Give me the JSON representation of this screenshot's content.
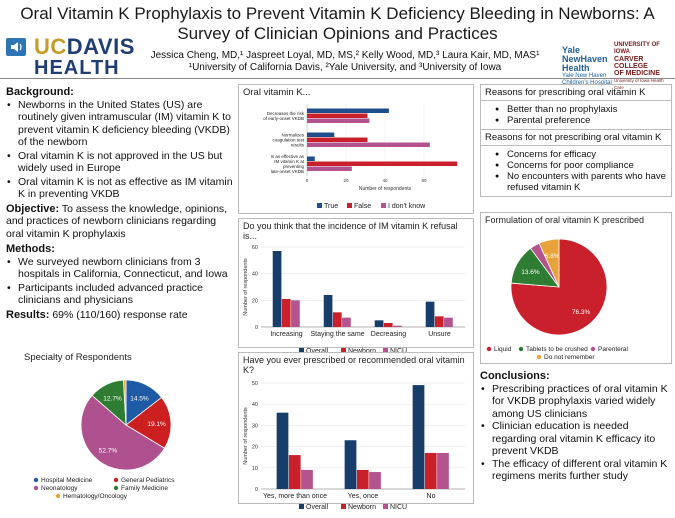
{
  "header": {
    "title": "Oral Vitamin K Prophylaxis to Prevent Vitamin K Deficiency Bleeding in Newborns: A Survey of Clinician Opinions and Practices",
    "authors_line1": "Jessica Cheng, MD,¹ Jaspreet Loyal, MD, MS,² Kelly Wood, MD,³ Laura Kair, MD, MAS¹",
    "authors_line2": "¹University of California Davis, ²Yale University, and ³University of Iowa",
    "logo_uc": "UC",
    "logo_davis": "DAVIS",
    "logo_health": "HEALTH",
    "yale_logo": [
      "Yale",
      "NewHaven",
      "Health"
    ],
    "yale_sub": [
      "Yale New Haven",
      "Children's Hospital"
    ],
    "iowa_logo": [
      "UNIVERSITY OF IOWA",
      "CARVER COLLEGE",
      "OF MEDICINE",
      "University of Iowa Health Care"
    ]
  },
  "left": {
    "background_h": "Background:",
    "background": [
      "Newborns in the United States (US) are routinely given intramuscular (IM) vitamin K to prevent vitamin K deficiency bleeding (VKDB) of the newborn",
      "Oral vitamin K is not approved in the US but widely used in Europe",
      "Oral vitamin K is not as effective as IM vitamin K in preventing VKDB"
    ],
    "objective_h": "Objective:",
    "objective": " To assess the knowledge, opinions, and practices of newborn clinicians regarding oral vitamin K prophylaxis",
    "methods_h": "Methods:",
    "methods": [
      "We surveyed newborn clinicians from 3 hospitals in California, Connecticut, and Iowa",
      "Participants included advanced practice clinicians and physicians"
    ],
    "results_h": "Results:",
    "results": " 69% (110/160) response rate"
  },
  "reasons": {
    "for_h": "Reasons for prescribing oral vitamin K",
    "for": [
      "Better than no prophylaxis",
      "Parental preference"
    ],
    "against_h": "Reasons for not prescribing oral vitamin K",
    "against": [
      "Concerns for efficacy",
      "Concerns for poor compliance",
      "No encounters with parents who have refused vitamin K"
    ]
  },
  "conclusions": {
    "h": "Conclusions:",
    "items": [
      "Prescribing practices of oral vitamin K for VKDB prophylaxis varied widely among US clinicians",
      "Clinician education is needed regarding oral vitamin K efficacy ito prevent VKDB",
      "The efficacy of different oral vitamin K regimens merits further study"
    ]
  },
  "chart_data": [
    {
      "id": "specialty",
      "type": "pie",
      "title": "Specialty of Respondents",
      "categories": [
        "Hospital Medicine",
        "General Pediatrics",
        "Neonatology",
        "Family Medicine",
        "Hematology/Oncology"
      ],
      "values": [
        14.5,
        19.1,
        52.7,
        12.7,
        0.9
      ],
      "labels": [
        "14.5%",
        "19.1%",
        "52.7%",
        "12.7%",
        ""
      ],
      "colors": [
        "#1f5aa6",
        "#cc1f1f",
        "#b0518f",
        "#2e7d32",
        "#e8a33a"
      ],
      "legend": "bottom"
    },
    {
      "id": "opinions",
      "type": "bar",
      "orientation": "horizontal",
      "title": "Oral vitamin K...",
      "categories": [
        "Decreases the risk of early-onset VKDB",
        "Normalizes coagulation test results",
        "Is as effective as IM vitamin K at preventing late-onset VKDB"
      ],
      "series": [
        {
          "name": "True",
          "values": [
            42,
            14,
            4
          ],
          "color": "#1f4e8c"
        },
        {
          "name": "False",
          "values": [
            31,
            31,
            77
          ],
          "color": "#c9202b"
        },
        {
          "name": "I don't know",
          "values": [
            32,
            63,
            23
          ],
          "color": "#b3548f"
        }
      ],
      "xlabel": "Number of respondents",
      "xticks": [
        "0",
        "20",
        "40",
        "60"
      ],
      "xlim": [
        0,
        80
      ],
      "legend": "bottom"
    },
    {
      "id": "refusal",
      "type": "bar",
      "title": "Do you think that the incidence of IM vitamin K refusal is...",
      "categories": [
        "Increasing",
        "Staying the same",
        "Decreasing",
        "Unsure"
      ],
      "series": [
        {
          "name": "Overall",
          "values": [
            57,
            24,
            5,
            19
          ],
          "color": "#173e6b"
        },
        {
          "name": "Newborn",
          "values": [
            21,
            11,
            3,
            8
          ],
          "color": "#c9202b"
        },
        {
          "name": "NICU",
          "values": [
            20,
            7,
            1,
            7
          ],
          "color": "#b3548f"
        }
      ],
      "ylabel": "Number of respondents",
      "yticks": [
        "0",
        "20",
        "40",
        "60"
      ],
      "ylim": [
        0,
        60
      ],
      "legend": "bottom"
    },
    {
      "id": "prescribed",
      "type": "bar",
      "title": "Have you ever prescribed or recommended oral vitamin K?",
      "categories": [
        "Yes, more than once",
        "Yes, once",
        "No"
      ],
      "series": [
        {
          "name": "Overall",
          "values": [
            36,
            23,
            49
          ],
          "color": "#173e6b"
        },
        {
          "name": "Newborn",
          "values": [
            16,
            9,
            17
          ],
          "color": "#c9202b"
        },
        {
          "name": "NICU",
          "values": [
            9,
            8,
            17
          ],
          "color": "#b3548f"
        }
      ],
      "ylabel": "Number of respondents",
      "yticks": [
        "0",
        "10",
        "20",
        "30",
        "40",
        "50"
      ],
      "ylim": [
        0,
        50
      ],
      "legend": "bottom"
    },
    {
      "id": "formulation",
      "type": "pie",
      "title": "Formulation of oral vitamin K prescribed",
      "categories": [
        "Liquid",
        "Tablets to be crushed",
        "Parenteral",
        "Do not remember"
      ],
      "values": [
        76.3,
        13.6,
        3.3,
        6.8
      ],
      "labels": [
        "76.3%",
        "13.6%",
        "",
        "6.8%"
      ],
      "colors": [
        "#c9202b",
        "#2e7d32",
        "#b3548f",
        "#e8a33a"
      ],
      "legend": "bottom"
    }
  ]
}
